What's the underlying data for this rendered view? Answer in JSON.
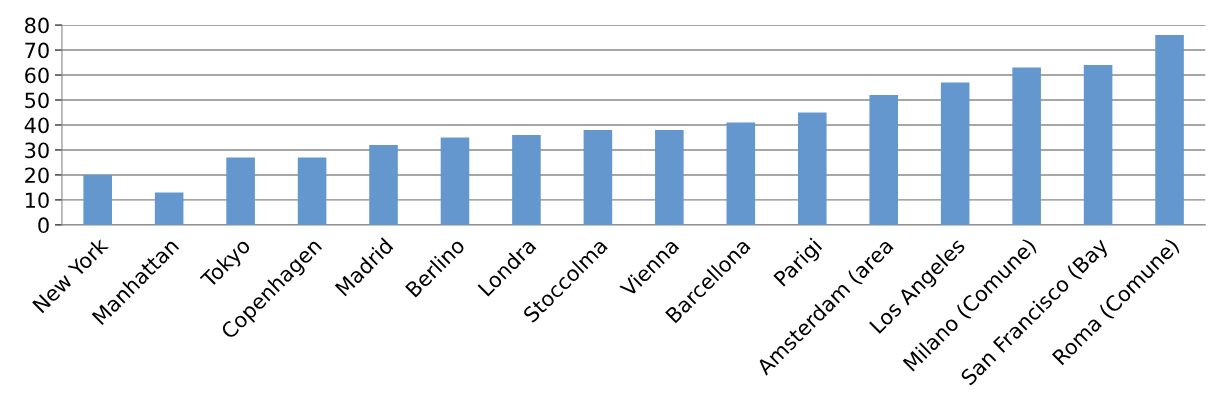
{
  "chart_data": {
    "type": "bar",
    "categories": [
      "New York",
      "Manhattan",
      "Tokyo",
      "Copenhagen",
      "Madrid",
      "Berlino",
      "Londra",
      "Stoccolma",
      "Vienna",
      "Barcellona",
      "Parigi",
      "Amsterdam (area",
      "Los Angeles",
      "Milano (Comune)",
      "San Francisco (Bay",
      "Roma (Comune)"
    ],
    "values": [
      20,
      13,
      27,
      27,
      32,
      35,
      36,
      38,
      38,
      41,
      45,
      52,
      57,
      63,
      64,
      76
    ],
    "color": "#6497cd",
    "ylim": [
      0,
      80
    ],
    "yticks": [
      0,
      10,
      20,
      30,
      40,
      50,
      60,
      70,
      80
    ],
    "grid": "y"
  }
}
